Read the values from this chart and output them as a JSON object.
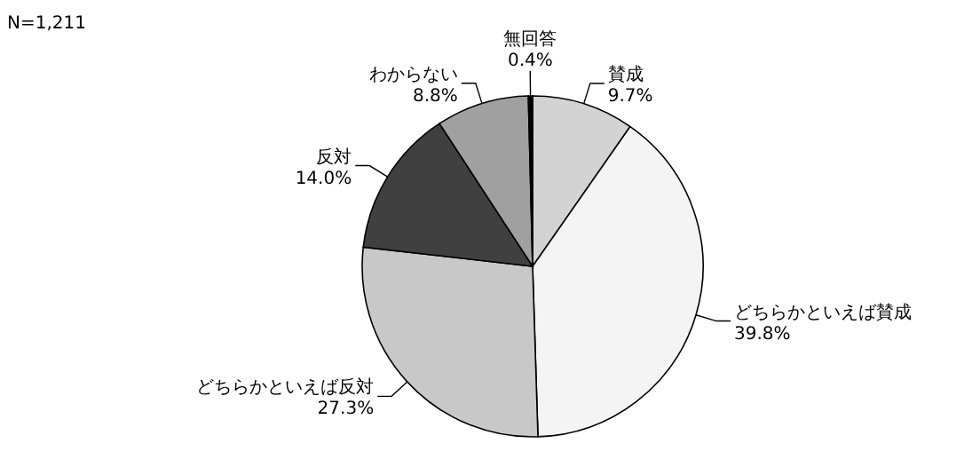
{
  "chart_data": {
    "type": "pie",
    "categories": [
      "賛成",
      "どちらかといえば賛成",
      "どちらかといえば反対",
      "反対",
      "わからない",
      "無回答"
    ],
    "values": [
      9.7,
      39.8,
      27.3,
      14.0,
      8.8,
      0.4
    ],
    "value_labels": [
      "9.7%",
      "39.8%",
      "27.3%",
      "14.0%",
      "8.8%",
      "0.4%"
    ],
    "colors": [
      "#d3d3d3",
      "#f4f4f4",
      "#c8c8c8",
      "#404040",
      "#a0a0a0",
      "#000000"
    ],
    "annotations": [
      "N=1,211"
    ],
    "legend": false
  }
}
